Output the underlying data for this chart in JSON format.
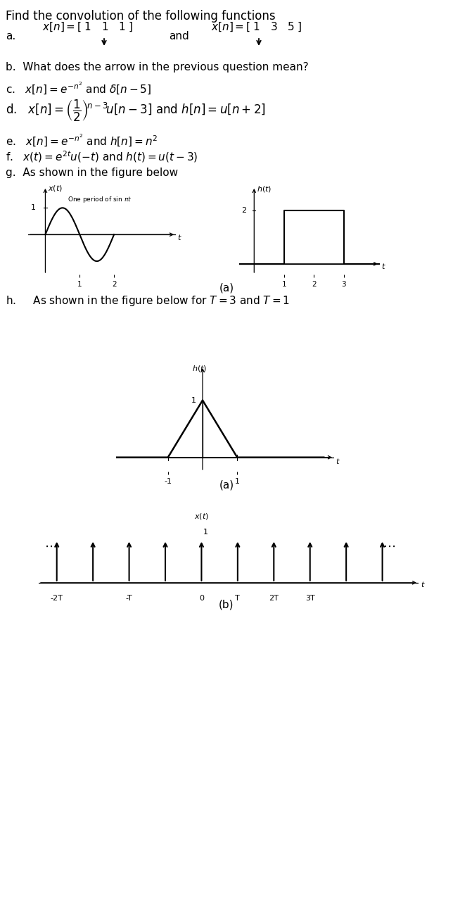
{
  "title": "Find the convolution of the following functions",
  "bg_color": "#ffffff",
  "text_color": "#000000",
  "line_a_x1": "x[n] =[ 1  1  1  ]",
  "line_a_x2": "x[n] =[ 1  3  5  ]",
  "line_b": "b.  What does the arrow in the previous question mean?",
  "line_c": "c.   $x[n]=e^{-n^2}$ and $\\delta[n-5]$",
  "line_d": "d.   $x[n]=\\left(\\dfrac{1}{2}\\right)^{n-3}\\!u[n-3]$ and $h[n]=u[n+2]$",
  "line_e": "e.   $x[n]=e^{-n^2}$ and $h[n]=n^2$",
  "line_f": "f.   $x(t)=e^{2t}u(-t)$ and $h(t)=u(t-3)$",
  "line_g": "g.  As shown in the figure below",
  "line_h": "h.     As shown in the figure below for $T=3$ and $T=1$",
  "caption_a": "(a)",
  "caption_b": "(b)"
}
